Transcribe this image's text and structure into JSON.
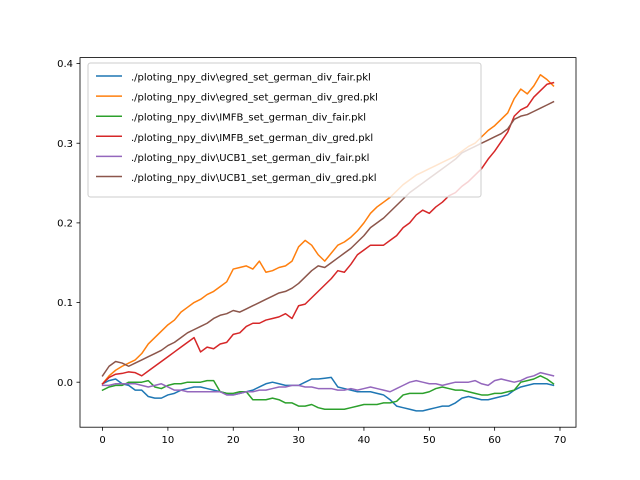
{
  "chart_data": {
    "type": "line",
    "title": "",
    "xlabel": "",
    "ylabel": "",
    "xlim": [
      -3.45,
      72.45
    ],
    "ylim": [
      -0.0565,
      0.4075
    ],
    "xticks": [
      0,
      10,
      20,
      30,
      40,
      50,
      60,
      70
    ],
    "yticks": [
      0.0,
      0.1,
      0.2,
      0.3,
      0.4
    ],
    "ytick_labels": [
      "0.0",
      "0.1",
      "0.2",
      "0.3",
      "0.4"
    ],
    "grid": false,
    "legend_position": "upper-left",
    "x": [
      0,
      1,
      2,
      3,
      4,
      5,
      6,
      7,
      8,
      9,
      10,
      11,
      12,
      13,
      14,
      15,
      16,
      17,
      18,
      19,
      20,
      21,
      22,
      23,
      24,
      25,
      26,
      27,
      28,
      29,
      30,
      31,
      32,
      33,
      34,
      35,
      36,
      37,
      38,
      39,
      40,
      41,
      42,
      43,
      44,
      45,
      46,
      47,
      48,
      49,
      50,
      51,
      52,
      53,
      54,
      55,
      56,
      57,
      58,
      59,
      60,
      61,
      62,
      63,
      64,
      65,
      66,
      67,
      68,
      69
    ],
    "series": [
      {
        "name": "./ploting_npy_div\\egred_set_german_div_fair.pkl",
        "color": "#1f77b4",
        "values": [
          -0.002,
          0.002,
          0.004,
          -0.002,
          -0.004,
          -0.01,
          -0.01,
          -0.018,
          -0.02,
          -0.02,
          -0.016,
          -0.014,
          -0.01,
          -0.008,
          -0.006,
          -0.006,
          -0.008,
          -0.01,
          -0.012,
          -0.014,
          -0.016,
          -0.014,
          -0.012,
          -0.01,
          -0.006,
          -0.002,
          0.0,
          -0.002,
          -0.004,
          -0.004,
          -0.004,
          0.0,
          0.004,
          0.004,
          0.005,
          0.006,
          -0.006,
          -0.008,
          -0.01,
          -0.012,
          -0.012,
          -0.012,
          -0.014,
          -0.016,
          -0.022,
          -0.03,
          -0.032,
          -0.034,
          -0.036,
          -0.036,
          -0.034,
          -0.032,
          -0.03,
          -0.03,
          -0.026,
          -0.02,
          -0.018,
          -0.02,
          -0.022,
          -0.022,
          -0.02,
          -0.018,
          -0.016,
          -0.01,
          -0.006,
          -0.004,
          -0.002,
          -0.002,
          -0.002,
          -0.004
        ]
      },
      {
        "name": "./ploting_npy_div\\egred_set_german_div_gred.pkl",
        "color": "#ff7f0e",
        "values": [
          -0.002,
          0.008,
          0.015,
          0.02,
          0.024,
          0.028,
          0.036,
          0.048,
          0.056,
          0.064,
          0.072,
          0.078,
          0.088,
          0.094,
          0.1,
          0.104,
          0.11,
          0.114,
          0.12,
          0.126,
          0.142,
          0.144,
          0.146,
          0.142,
          0.152,
          0.138,
          0.14,
          0.144,
          0.146,
          0.152,
          0.17,
          0.178,
          0.172,
          0.16,
          0.152,
          0.162,
          0.172,
          0.176,
          0.182,
          0.19,
          0.2,
          0.212,
          0.22,
          0.226,
          0.232,
          0.24,
          0.248,
          0.254,
          0.26,
          0.264,
          0.268,
          0.272,
          0.276,
          0.28,
          0.284,
          0.29,
          0.296,
          0.3,
          0.308,
          0.316,
          0.322,
          0.33,
          0.338,
          0.356,
          0.368,
          0.362,
          0.372,
          0.386,
          0.38,
          0.372
        ]
      },
      {
        "name": "./ploting_npy_div\\IMFB_set_german_div_fair.pkl",
        "color": "#2ca02c",
        "values": [
          -0.01,
          -0.006,
          -0.004,
          -0.004,
          0.0,
          0.0,
          0.0,
          0.002,
          -0.006,
          -0.008,
          -0.004,
          -0.002,
          -0.002,
          0.0,
          0.0,
          0.0,
          0.002,
          0.002,
          -0.012,
          -0.014,
          -0.014,
          -0.012,
          -0.012,
          -0.022,
          -0.022,
          -0.022,
          -0.02,
          -0.022,
          -0.026,
          -0.026,
          -0.03,
          -0.03,
          -0.028,
          -0.032,
          -0.034,
          -0.034,
          -0.034,
          -0.034,
          -0.032,
          -0.03,
          -0.028,
          -0.028,
          -0.028,
          -0.026,
          -0.026,
          -0.024,
          -0.016,
          -0.014,
          -0.014,
          -0.014,
          -0.012,
          -0.008,
          -0.006,
          -0.008,
          -0.01,
          -0.01,
          -0.012,
          -0.014,
          -0.016,
          -0.016,
          -0.014,
          -0.014,
          -0.012,
          -0.01,
          0.0,
          0.002,
          0.004,
          0.008,
          0.004,
          -0.002
        ]
      },
      {
        "name": "./ploting_npy_div\\IMFB_set_german_div_gred.pkl",
        "color": "#d62728",
        "values": [
          -0.002,
          0.006,
          0.01,
          0.011,
          0.013,
          0.012,
          0.008,
          0.014,
          0.02,
          0.026,
          0.032,
          0.038,
          0.044,
          0.05,
          0.056,
          0.038,
          0.044,
          0.042,
          0.048,
          0.05,
          0.06,
          0.062,
          0.07,
          0.074,
          0.074,
          0.078,
          0.08,
          0.082,
          0.086,
          0.08,
          0.096,
          0.098,
          0.106,
          0.114,
          0.122,
          0.13,
          0.14,
          0.138,
          0.148,
          0.16,
          0.166,
          0.172,
          0.172,
          0.172,
          0.178,
          0.184,
          0.194,
          0.2,
          0.21,
          0.216,
          0.212,
          0.22,
          0.226,
          0.234,
          0.238,
          0.246,
          0.252,
          0.26,
          0.268,
          0.28,
          0.29,
          0.302,
          0.314,
          0.334,
          0.342,
          0.346,
          0.358,
          0.366,
          0.374,
          0.376
        ]
      },
      {
        "name": "./ploting_npy_div\\UCB1_set_german_div_fair.pkl",
        "color": "#9467bd",
        "values": [
          -0.004,
          -0.004,
          -0.002,
          -0.002,
          -0.002,
          -0.002,
          -0.004,
          -0.006,
          -0.004,
          -0.002,
          -0.006,
          -0.01,
          -0.01,
          -0.012,
          -0.012,
          -0.012,
          -0.012,
          -0.012,
          -0.012,
          -0.016,
          -0.016,
          -0.014,
          -0.012,
          -0.012,
          -0.01,
          -0.01,
          -0.008,
          -0.006,
          -0.006,
          -0.004,
          -0.004,
          -0.006,
          -0.006,
          -0.008,
          -0.008,
          -0.008,
          -0.01,
          -0.01,
          -0.008,
          -0.01,
          -0.008,
          -0.006,
          -0.008,
          -0.01,
          -0.012,
          -0.008,
          -0.004,
          0.0,
          0.002,
          0.0,
          -0.002,
          -0.002,
          -0.004,
          -0.002,
          0.0,
          0.0,
          0.0,
          0.002,
          -0.002,
          -0.004,
          0.002,
          0.004,
          0.002,
          0.0,
          0.002,
          0.006,
          0.008,
          0.012,
          0.01,
          0.008
        ]
      },
      {
        "name": "./ploting_npy_div\\UCB1_set_german_div_gred.pkl",
        "color": "#8c564b",
        "values": [
          0.008,
          0.02,
          0.026,
          0.024,
          0.02,
          0.024,
          0.028,
          0.032,
          0.036,
          0.04,
          0.046,
          0.05,
          0.056,
          0.062,
          0.066,
          0.07,
          0.074,
          0.08,
          0.084,
          0.086,
          0.09,
          0.088,
          0.092,
          0.096,
          0.1,
          0.104,
          0.108,
          0.112,
          0.114,
          0.118,
          0.124,
          0.132,
          0.14,
          0.146,
          0.144,
          0.15,
          0.156,
          0.162,
          0.168,
          0.176,
          0.184,
          0.194,
          0.2,
          0.206,
          0.214,
          0.222,
          0.23,
          0.238,
          0.244,
          0.25,
          0.256,
          0.262,
          0.268,
          0.274,
          0.28,
          0.288,
          0.292,
          0.296,
          0.3,
          0.304,
          0.308,
          0.312,
          0.318,
          0.33,
          0.334,
          0.336,
          0.34,
          0.344,
          0.348,
          0.352
        ]
      }
    ]
  }
}
